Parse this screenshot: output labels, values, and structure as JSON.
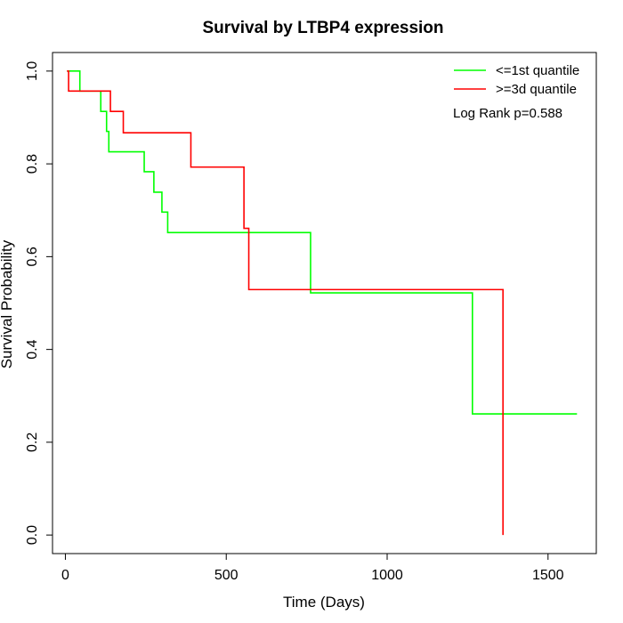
{
  "chart_data": {
    "type": "line",
    "subtype": "kaplan-meier-step",
    "title": "Survival by LTBP4 expression",
    "xlabel": "Time (Days)",
    "ylabel": "Survival Probability",
    "xlim": [
      -40,
      1650
    ],
    "ylim": [
      -0.04,
      1.04
    ],
    "xticks": [
      0,
      500,
      1000,
      1500
    ],
    "xtick_labels": [
      "0",
      "500",
      "1000",
      "1500"
    ],
    "yticks": [
      0.0,
      0.2,
      0.4,
      0.6,
      0.8,
      1.0
    ],
    "ytick_labels": [
      "0.0",
      "0.2",
      "0.4",
      "0.6",
      "0.8",
      "1.0"
    ],
    "grid": false,
    "legend_position": "top-right",
    "annotation": "Log Rank p=0.588",
    "series": [
      {
        "name": "<=1st quantile",
        "color": "#00ff00",
        "x": [
          5,
          45,
          110,
          128,
          135,
          245,
          275,
          300,
          318,
          762,
          1265,
          1590
        ],
        "y": [
          1.0,
          0.957,
          0.913,
          0.87,
          0.826,
          0.783,
          0.739,
          0.696,
          0.652,
          0.522,
          0.261,
          0.261
        ]
      },
      {
        "name": ">=3d quantile",
        "color": "#ff0000",
        "x": [
          5,
          10,
          140,
          180,
          390,
          555,
          570,
          1360,
          1360
        ],
        "y": [
          1.0,
          0.957,
          0.913,
          0.867,
          0.793,
          0.661,
          0.529,
          0.529,
          0.0
        ]
      }
    ]
  }
}
